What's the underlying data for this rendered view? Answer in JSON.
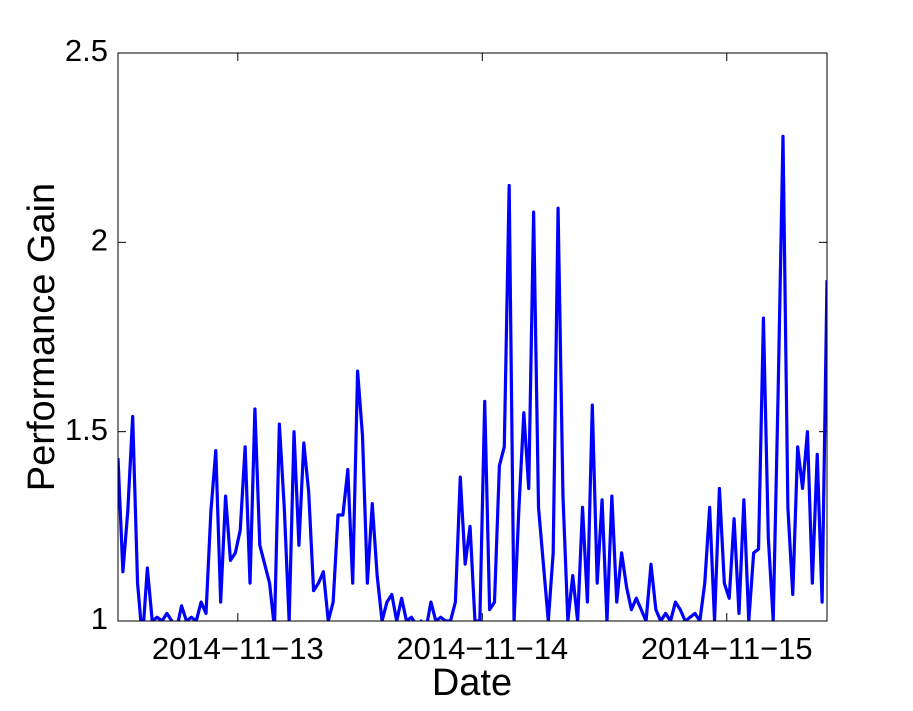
{
  "chart_data": {
    "type": "line",
    "x_label": "Date",
    "y_label": "Performance Gain",
    "x": [
      12.51,
      12.53,
      12.55,
      12.57,
      12.59,
      12.61,
      12.63,
      12.65,
      12.67,
      12.69,
      12.71,
      12.73,
      12.75,
      12.77,
      12.79,
      12.81,
      12.83,
      12.85,
      12.87,
      12.89,
      12.91,
      12.93,
      12.95,
      12.97,
      12.99,
      13.01,
      13.03,
      13.05,
      13.07,
      13.09,
      13.11,
      13.13,
      13.15,
      13.17,
      13.19,
      13.21,
      13.23,
      13.25,
      13.27,
      13.29,
      13.31,
      13.33,
      13.35,
      13.37,
      13.39,
      13.41,
      13.43,
      13.45,
      13.47,
      13.49,
      13.51,
      13.53,
      13.55,
      13.57,
      13.59,
      13.61,
      13.63,
      13.65,
      13.67,
      13.69,
      13.71,
      13.73,
      13.75,
      13.77,
      13.79,
      13.81,
      13.83,
      13.85,
      13.87,
      13.89,
      13.91,
      13.93,
      13.95,
      13.97,
      13.99,
      14.01,
      14.03,
      14.05,
      14.07,
      14.09,
      14.11,
      14.13,
      14.15,
      14.17,
      14.19,
      14.21,
      14.23,
      14.25,
      14.27,
      14.29,
      14.31,
      14.33,
      14.35,
      14.37,
      14.39,
      14.41,
      14.43,
      14.45,
      14.47,
      14.49,
      14.51,
      14.53,
      14.55,
      14.57,
      14.59,
      14.61,
      14.63,
      14.65,
      14.67,
      14.69,
      14.71,
      14.73,
      14.75,
      14.77,
      14.79,
      14.81,
      14.83,
      14.85,
      14.87,
      14.89,
      14.91,
      14.93,
      14.95,
      14.97,
      14.99,
      15.01,
      15.03,
      15.05,
      15.07,
      15.09,
      15.11,
      15.13,
      15.15,
      15.17,
      15.19,
      15.21,
      15.23,
      15.25,
      15.27,
      15.29,
      15.31,
      15.33,
      15.35,
      15.37,
      15.39,
      15.41
    ],
    "series": [
      {
        "color": "#0000ff",
        "values": [
          1.43,
          1.13,
          1.29,
          1.54,
          1.1,
          0.95,
          1.14,
          1.0,
          1.01,
          1.0,
          1.02,
          1.0,
          0.98,
          1.04,
          1.0,
          1.01,
          1.0,
          1.05,
          1.02,
          1.29,
          1.45,
          1.05,
          1.33,
          1.16,
          1.18,
          1.24,
          1.46,
          1.1,
          1.56,
          1.2,
          1.15,
          1.1,
          0.98,
          1.52,
          1.3,
          1.0,
          1.5,
          1.2,
          1.47,
          1.34,
          1.08,
          1.1,
          1.13,
          1.0,
          1.05,
          1.28,
          1.28,
          1.4,
          1.1,
          1.66,
          1.49,
          1.1,
          1.31,
          1.12,
          1.0,
          1.05,
          1.07,
          1.0,
          1.06,
          1.0,
          1.01,
          0.99,
          1.0,
          0.98,
          1.05,
          1.0,
          1.01,
          1.0,
          1.0,
          1.05,
          1.38,
          1.15,
          1.25,
          1.0,
          1.0,
          1.58,
          1.03,
          1.05,
          1.41,
          1.46,
          2.15,
          1.0,
          1.3,
          1.55,
          1.35,
          2.08,
          1.3,
          1.15,
          1.0,
          1.18,
          2.09,
          1.33,
          1.0,
          1.12,
          1.0,
          1.3,
          1.05,
          1.57,
          1.1,
          1.32,
          1.0,
          1.33,
          1.05,
          1.18,
          1.09,
          1.03,
          1.06,
          1.03,
          1.0,
          1.15,
          1.03,
          1.0,
          1.02,
          1.0,
          1.05,
          1.03,
          1.0,
          1.01,
          1.02,
          1.0,
          1.1,
          1.3,
          1.0,
          1.35,
          1.1,
          1.06,
          1.27,
          1.02,
          1.32,
          1.0,
          1.18,
          1.19,
          1.8,
          1.22,
          1.0,
          1.6,
          2.28,
          1.3,
          1.07,
          1.46,
          1.35,
          1.5,
          1.1,
          1.44,
          1.05,
          1.9
        ]
      }
    ],
    "xlim": [
      12.51,
      15.41
    ],
    "xticks": [
      {
        "value": 13,
        "label": "2014−11−13"
      },
      {
        "value": 14,
        "label": "2014−11−14"
      },
      {
        "value": 15,
        "label": "2014−11−15"
      }
    ],
    "ylim": [
      1,
      2.5
    ],
    "yticks": [
      1,
      1.5,
      2,
      2.5
    ],
    "grid": false
  }
}
